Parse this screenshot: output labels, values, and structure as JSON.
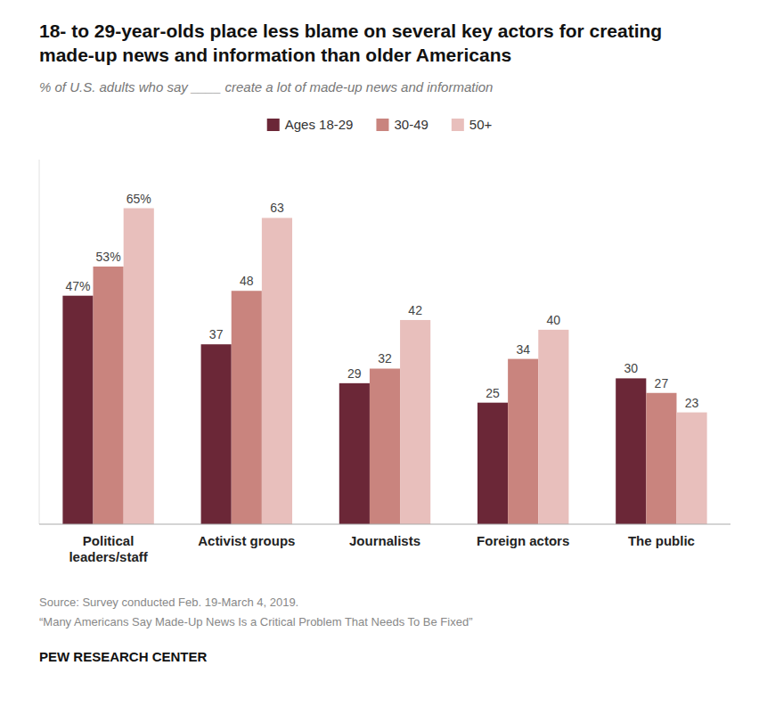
{
  "chart_data": {
    "type": "bar",
    "title": "18- to 29-year-olds place less blame on several key actors for creating made-up news and information than older Americans",
    "subtitle": "% of U.S. adults who say ____ create a lot of made-up news and information",
    "categories": [
      "Political\nleaders/staff",
      "Activist groups",
      "Journalists",
      "Foreign actors",
      "The public"
    ],
    "series": [
      {
        "name": "Ages 18-29",
        "color": "#6b2737",
        "values": [
          47,
          37,
          29,
          25,
          30
        ],
        "value_labels": [
          "47%",
          "37",
          "29",
          "25",
          "30"
        ]
      },
      {
        "name": "30-49",
        "color": "#c9847e",
        "values": [
          53,
          48,
          32,
          34,
          27
        ],
        "value_labels": [
          "53%",
          "48",
          "32",
          "34",
          "27"
        ]
      },
      {
        "name": "50+",
        "color": "#e8bfbc",
        "values": [
          65,
          63,
          42,
          40,
          23
        ],
        "value_labels": [
          "65%",
          "63",
          "42",
          "40",
          "23"
        ]
      }
    ],
    "ylim": [
      0,
      75
    ],
    "grid": false,
    "legend": "top",
    "data_labels": true,
    "tick_labels": "x",
    "annotations": [
      "Source: Survey conducted Feb. 19-March 4, 2019.",
      "“Many Americans Say Made-Up News Is a Critical Problem That Needs To Be Fixed”",
      "PEW RESEARCH CENTER"
    ]
  }
}
